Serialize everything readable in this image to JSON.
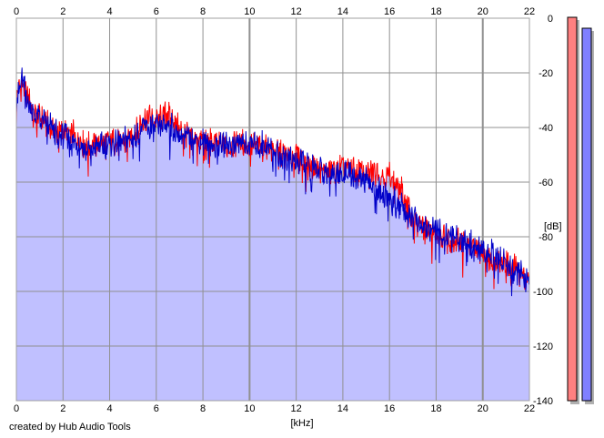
{
  "chart_data": {
    "type": "line",
    "title": "",
    "xlabel": "[kHz]",
    "ylabel": "[dB]",
    "xlim": [
      0,
      22
    ],
    "ylim": [
      -140,
      0
    ],
    "x_ticks": [
      0,
      2,
      4,
      6,
      8,
      10,
      12,
      14,
      16,
      18,
      20,
      22
    ],
    "y_ticks": [
      0,
      -20,
      -40,
      -60,
      -80,
      -100,
      -120,
      -140
    ],
    "grid": true,
    "x_tick_labels_top_and_bottom": true,
    "y_axis_side": "right",
    "series": [
      {
        "color": "#ff0000",
        "x": [
          0,
          0.25,
          0.5,
          0.75,
          1,
          1.5,
          2,
          2.5,
          3,
          3.5,
          4,
          4.5,
          5,
          5.5,
          6,
          6.5,
          7,
          7.5,
          8,
          8.5,
          9,
          9.5,
          10,
          10.5,
          11,
          11.5,
          12,
          12.5,
          13,
          13.5,
          14,
          14.5,
          15,
          15.5,
          16,
          16.5,
          17,
          17.5,
          18,
          18.5,
          19,
          19.5,
          20,
          20.5,
          21,
          21.5,
          22
        ],
        "y": [
          -28,
          -24,
          -30,
          -34,
          -36,
          -41,
          -42,
          -43,
          -47,
          -46,
          -45,
          -46,
          -43,
          -36,
          -38,
          -35,
          -41,
          -43,
          -45,
          -46,
          -47,
          -45,
          -46,
          -47,
          -48,
          -50,
          -51,
          -54,
          -56,
          -56,
          -55,
          -56,
          -57,
          -56,
          -58,
          -63,
          -74,
          -77,
          -79,
          -81,
          -82,
          -84,
          -85,
          -88,
          -89,
          -92,
          -98
        ]
      },
      {
        "color": "#0000c8",
        "x": [
          0,
          0.25,
          0.5,
          0.75,
          1,
          1.5,
          2,
          2.5,
          3,
          3.5,
          4,
          4.5,
          5,
          5.5,
          6,
          6.5,
          7,
          7.5,
          8,
          8.5,
          9,
          9.5,
          10,
          10.5,
          11,
          11.5,
          12,
          12.5,
          13,
          13.5,
          14,
          14.5,
          15,
          15.5,
          16,
          16.5,
          17,
          17.5,
          18,
          18.5,
          19,
          19.5,
          20,
          20.5,
          21,
          21.5,
          22
        ],
        "y": [
          -30,
          -22,
          -31,
          -35,
          -37,
          -40,
          -43,
          -45,
          -49,
          -47,
          -46,
          -45,
          -44,
          -40,
          -40,
          -39,
          -43,
          -44,
          -45,
          -47,
          -46,
          -46,
          -47,
          -46,
          -48,
          -51,
          -52,
          -54,
          -55,
          -57,
          -57,
          -58,
          -60,
          -63,
          -66,
          -69,
          -73,
          -76,
          -78,
          -80,
          -81,
          -83,
          -85,
          -87,
          -90,
          -93,
          -97
        ]
      }
    ],
    "fill_color": "#c0c0ff",
    "level_meters": [
      {
        "color": "#ff8080",
        "level_db": 0
      },
      {
        "color": "#8080ff",
        "level_db": 0
      }
    ]
  },
  "footer": {
    "credit": "created by Hub Audio Tools"
  }
}
